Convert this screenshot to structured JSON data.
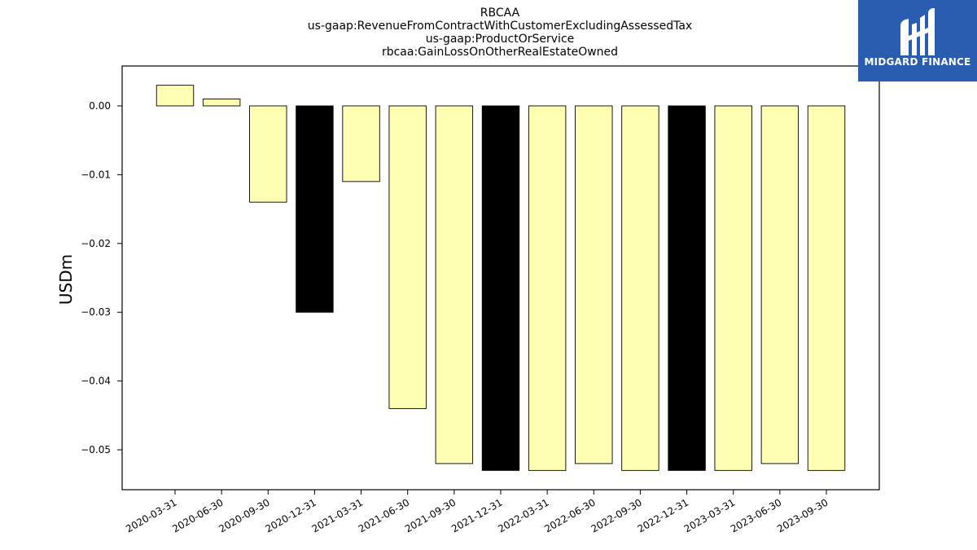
{
  "chart_data": {
    "type": "bar",
    "title": [
      "RBCAA",
      "us-gaap:RevenueFromContractWithCustomerExcludingAssessedTax",
      "us-gaap:ProductOrService",
      "rbcaa:GainLossOnOtherRealEstateOwned"
    ],
    "ylabel": "USDm",
    "xlabel": "",
    "categories": [
      "2020-03-31",
      "2020-06-30",
      "2020-09-30",
      "2020-12-31",
      "2021-03-31",
      "2021-06-30",
      "2021-09-30",
      "2021-12-31",
      "2022-03-31",
      "2022-06-30",
      "2022-09-30",
      "2022-12-31",
      "2023-03-31",
      "2023-06-30",
      "2023-09-30"
    ],
    "values": [
      0.003,
      0.001,
      -0.014,
      -0.03,
      -0.011,
      -0.044,
      -0.052,
      -0.053,
      -0.053,
      -0.052,
      -0.053,
      -0.053,
      -0.053,
      -0.052,
      -0.053
    ],
    "bar_colors": [
      "#ffffb3",
      "#ffffb3",
      "#ffffb3",
      "#000000",
      "#ffffb3",
      "#ffffb3",
      "#ffffb3",
      "#000000",
      "#ffffb3",
      "#ffffb3",
      "#ffffb3",
      "#000000",
      "#ffffb3",
      "#ffffb3",
      "#ffffb3"
    ],
    "yticks": [
      0.0,
      -0.01,
      -0.02,
      -0.03,
      -0.04,
      -0.05
    ],
    "ytick_labels": [
      "0.00",
      "−0.01",
      "−0.02",
      "−0.03",
      "−0.04",
      "−0.05"
    ],
    "ylim": [
      -0.0558,
      0.0058
    ],
    "grid": false
  },
  "logo": {
    "brand": "MIDGARD FINANCE",
    "color": "#2a5db0",
    "icon": "midgard-logo-icon"
  }
}
